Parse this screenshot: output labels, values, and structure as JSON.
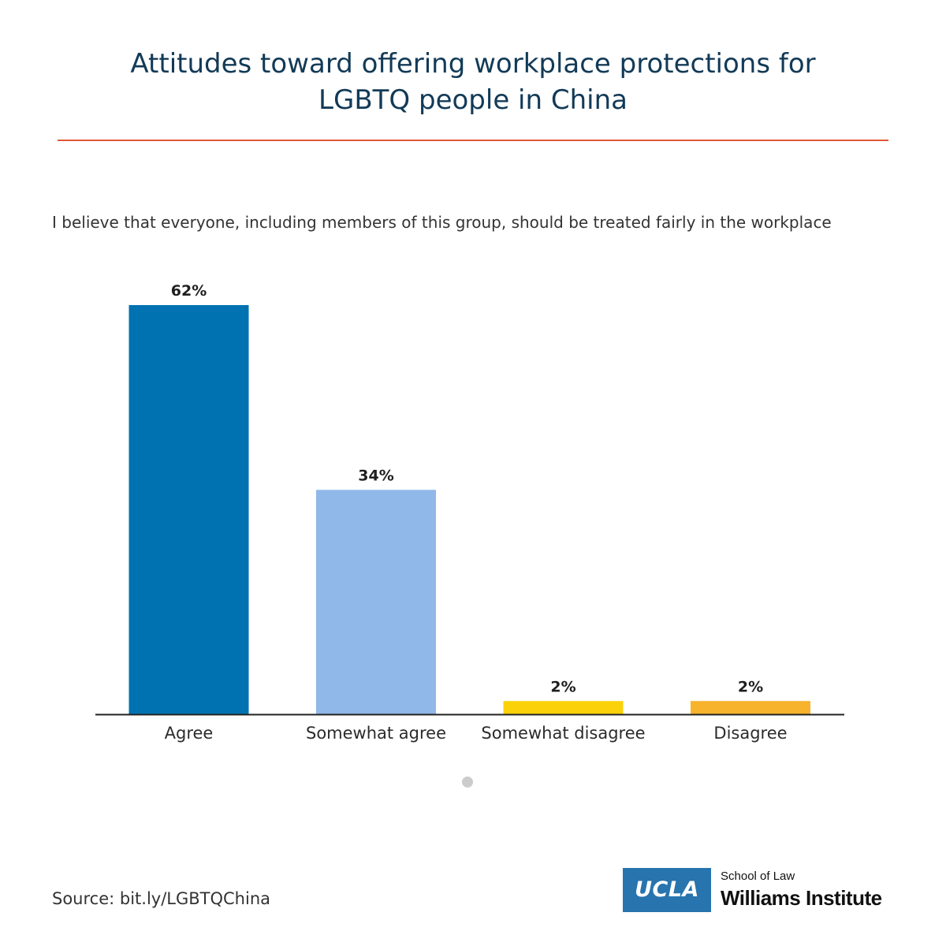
{
  "header": {
    "title_line1": "Attitudes toward offering workplace protections for",
    "title_line2": "LGBTQ people in China"
  },
  "colors": {
    "title": "#123a57",
    "rule": "#e0573a",
    "agree": "#0072b1",
    "somewhat_agree": "#90b8e8",
    "somewhat_disagree": "#fbd20a",
    "disagree": "#f7b32b",
    "ucla_blue": "#2774ae"
  },
  "chart_data": {
    "type": "bar",
    "title": "I believe that everyone, including members of this group, should be treated fairly in the workplace",
    "categories": [
      "Agree",
      "Somewhat agree",
      "Somewhat disagree",
      "Disagree"
    ],
    "values": [
      62,
      34,
      2,
      2
    ],
    "value_labels": [
      "62%",
      "34%",
      "2%",
      "2%"
    ],
    "bar_colors": [
      "#0072b1",
      "#90b8e8",
      "#fbd20a",
      "#f7b32b"
    ],
    "unit": "%",
    "ylim": [
      0,
      62
    ],
    "grid": false,
    "legend": "none"
  },
  "footer": {
    "source": "Source: bit.ly/LGBTQChina",
    "logo_ucla": "UCLA",
    "logo_school": "School of Law",
    "logo_institute": "Williams Institute"
  }
}
